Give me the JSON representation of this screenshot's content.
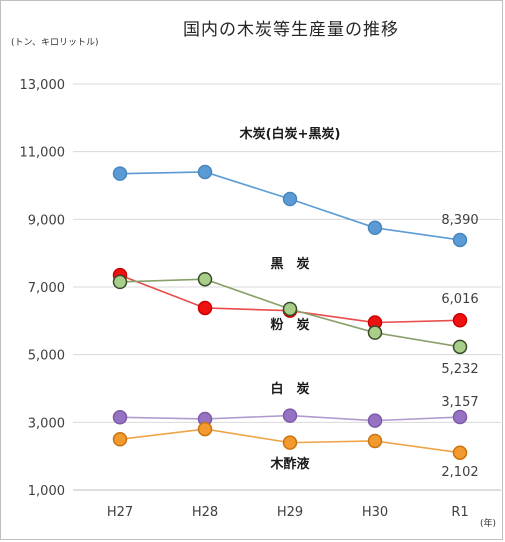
{
  "chart_data": {
    "type": "line",
    "title": "国内の木炭等生産量の推移",
    "ylabel": "(トン、キロリットル)",
    "xlabel": "(年)",
    "categories": [
      "H27",
      "H28",
      "H29",
      "H30",
      "R1"
    ],
    "ylim": [
      1000,
      13000
    ],
    "yticks": [
      1000,
      3000,
      5000,
      7000,
      9000,
      11000,
      13000
    ],
    "ytick_labels": [
      "1,000",
      "3,000",
      "5,000",
      "7,000",
      "9,000",
      "11,000",
      "13,000"
    ],
    "grid": true,
    "series": [
      {
        "name": "木炭(白炭+黒炭)",
        "values": [
          10350,
          10400,
          9600,
          8750,
          8390
        ],
        "color": "#5b9bd5",
        "marker": "#5b9bd5",
        "marker_edge": "#4a85bd",
        "last_label": "8,390"
      },
      {
        "name": "黒　炭",
        "values": [
          7350,
          6380,
          6300,
          5950,
          6016
        ],
        "color": "#e84c4c",
        "marker": "#ee1111",
        "marker_edge": "#cc0000",
        "last_label": "6,016"
      },
      {
        "name": "粉　炭",
        "values": [
          7150,
          7230,
          6350,
          5650,
          5232
        ],
        "color": "#8aa06a",
        "marker": "#a8cf8a",
        "marker_edge": "#3a4a2a",
        "last_label": "5,232"
      },
      {
        "name": "白　炭",
        "values": [
          3150,
          3100,
          3200,
          3050,
          3157
        ],
        "color": "#b09bd0",
        "marker": "#9673c2",
        "marker_edge": "#7b5aa8",
        "last_label": "3,157"
      },
      {
        "name": "木酢液",
        "values": [
          2500,
          2800,
          2400,
          2450,
          2102
        ],
        "color": "#f0a448",
        "marker": "#f29a2e",
        "marker_edge": "#c87412",
        "last_label": "2,102"
      }
    ]
  }
}
